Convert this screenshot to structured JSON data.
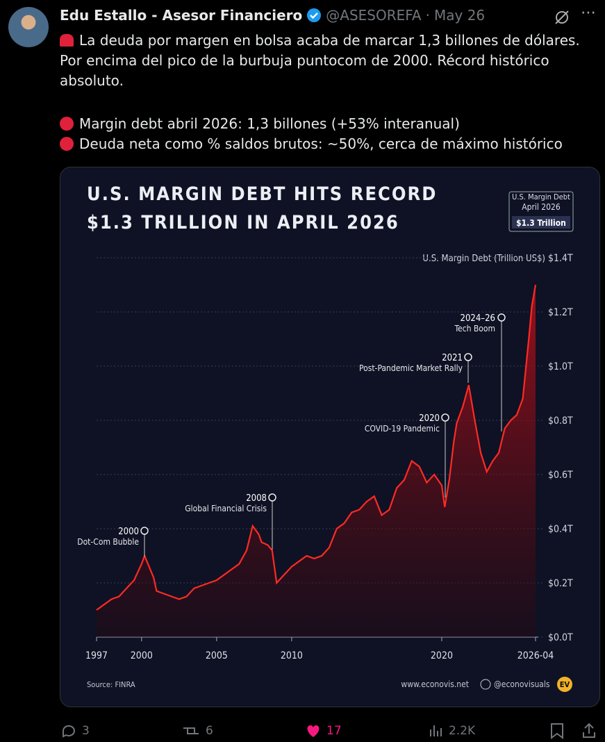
{
  "tweet": {
    "name": "Edu Estallo - Asesor Financiero",
    "handle": "@ASESOREFA",
    "date": "May 26",
    "lines": [
      "La deuda por margen en bolsa acaba de marcar 1,3 billones de dólares.",
      "Por encima del pico de la burbuja puntocom de 2000. Récord histórico",
      "absoluto."
    ],
    "bullets": [
      "Margin debt abril 2026: 1,3 billones (+53% interanual)",
      "Deuda neta como % saldos brutos: ~50%, cerca de máximo histórico"
    ],
    "actions": {
      "replies": "3",
      "reposts": "6",
      "likes": "17",
      "views": "2.2K"
    }
  },
  "chart_data": {
    "type": "line",
    "title": [
      "U.S. MARGIN DEBT HITS RECORD",
      "$1.3 TRILLION IN APRIL 2026"
    ],
    "badge": [
      "U.S. Margin Debt",
      "April 2026",
      "$1.3 Trillion"
    ],
    "y_label": "U.S. Margin Debt (Trillion US$)",
    "color": "#ff2a24",
    "grid": true,
    "x": [
      1997,
      1997.5,
      1998,
      1998.5,
      1999,
      1999.5,
      2000,
      2000.2,
      2000.5,
      2000.8,
      2001,
      2001.5,
      2002,
      2002.5,
      2003,
      2003.5,
      2004,
      2004.5,
      2005,
      2005.5,
      2006,
      2006.5,
      2007,
      2007.4,
      2007.8,
      2008,
      2008.4,
      2008.7,
      2009,
      2009.5,
      2010,
      2010.5,
      2011,
      2011.5,
      2012,
      2012.5,
      2013,
      2013.5,
      2014,
      2014.5,
      2015,
      2015.5,
      2016,
      2016.5,
      2017,
      2017.5,
      2018,
      2018.5,
      2019,
      2019.5,
      2020,
      2020.2,
      2020.5,
      2020.8,
      2021,
      2021.4,
      2021.8,
      2022.2,
      2022.6,
      2023,
      2023.4,
      2023.8,
      2024.2,
      2024.6,
      2025,
      2025.4,
      2025.8,
      2026,
      2026.25
    ],
    "values": [
      0.1,
      0.12,
      0.14,
      0.15,
      0.18,
      0.21,
      0.27,
      0.3,
      0.26,
      0.22,
      0.17,
      0.16,
      0.15,
      0.14,
      0.15,
      0.18,
      0.19,
      0.2,
      0.21,
      0.23,
      0.25,
      0.27,
      0.32,
      0.41,
      0.38,
      0.35,
      0.34,
      0.32,
      0.2,
      0.23,
      0.26,
      0.28,
      0.3,
      0.29,
      0.3,
      0.33,
      0.4,
      0.42,
      0.46,
      0.47,
      0.5,
      0.52,
      0.45,
      0.47,
      0.55,
      0.58,
      0.65,
      0.63,
      0.57,
      0.6,
      0.56,
      0.48,
      0.58,
      0.72,
      0.79,
      0.85,
      0.93,
      0.8,
      0.68,
      0.61,
      0.65,
      0.68,
      0.77,
      0.8,
      0.82,
      0.88,
      1.1,
      1.22,
      1.3
    ],
    "xlim": [
      1997,
      2026.25
    ],
    "xticks": [
      1997,
      2000,
      2005,
      2010,
      2020,
      {
        "value": 2026.25,
        "label": "2026-04"
      }
    ],
    "ylim": [
      0,
      1.4
    ],
    "yticks": [
      {
        "value": 0,
        "label": "$0.0T"
      },
      {
        "value": 0.2,
        "label": "$0.2T"
      },
      {
        "value": 0.4,
        "label": "$0.4T"
      },
      {
        "value": 0.6,
        "label": "$0.6T"
      },
      {
        "value": 0.8,
        "label": "$0.8T"
      },
      {
        "value": 1.0,
        "label": "$1.0T"
      },
      {
        "value": 1.2,
        "label": "$1.2T"
      },
      {
        "value": 1.4,
        "label": "$1.4T"
      }
    ],
    "annotations": [
      {
        "year": "2000",
        "text": "Dot-Com Bubble"
      },
      {
        "year": "2008",
        "text": "Global Financial Crisis"
      },
      {
        "year": "2020",
        "text": "COVID-19 Pandemic"
      },
      {
        "year": "2021",
        "text": "Post-Pandemic Market Rally"
      },
      {
        "year": "2024–26",
        "text": "Tech Boom"
      }
    ],
    "source": "Source: FINRA",
    "website": "www.econovis.net",
    "social": "@econovisuals",
    "logo": "EV"
  }
}
